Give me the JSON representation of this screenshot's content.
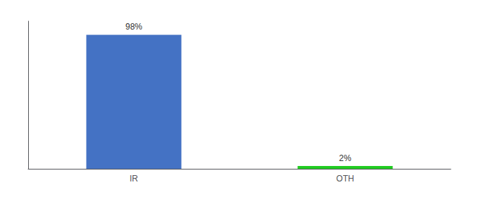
{
  "chart_data": {
    "type": "bar",
    "categories": [
      "IR",
      "OTH"
    ],
    "values": [
      98,
      2
    ],
    "value_labels": [
      "98%",
      "2%"
    ],
    "data_labels": true,
    "colors": [
      "#4472c4",
      "#22cc22"
    ],
    "ylim": [
      0,
      108
    ],
    "tick_labels": "x",
    "grid": false
  }
}
